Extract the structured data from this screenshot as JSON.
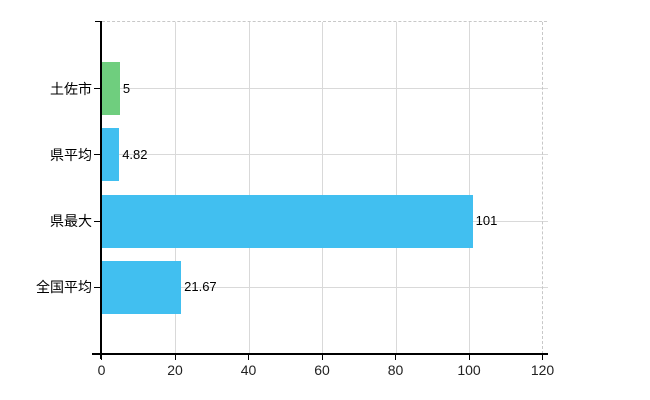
{
  "chart_data": {
    "type": "bar",
    "orientation": "horizontal",
    "title": "",
    "xlabel": "",
    "ylabel": "",
    "categories": [
      "土佐市",
      "県平均",
      "県最大",
      "全国平均"
    ],
    "values": [
      5,
      4.82,
      101,
      21.67
    ],
    "value_labels": [
      "5",
      "4.82",
      "101",
      "21.67"
    ],
    "bar_colors": [
      "#6FCE7E",
      "#41BFF0",
      "#41BFF0",
      "#41BFF0"
    ],
    "xlim": [
      0,
      120
    ],
    "xticks": [
      0,
      20,
      40,
      60,
      80,
      100,
      120
    ],
    "xtick_labels": [
      "0",
      "20",
      "40",
      "60",
      "80",
      "100",
      "120"
    ],
    "grid": true,
    "legend": false
  },
  "colors": {
    "bar_green": "#6FCE7E",
    "bar_blue": "#41BFF0",
    "gridline": "#D9D9D9",
    "dashed_border": "#C8C8C8",
    "axis": "#000000",
    "text": "#000000",
    "tick_text": "#222222",
    "background": "#FFFFFF"
  }
}
